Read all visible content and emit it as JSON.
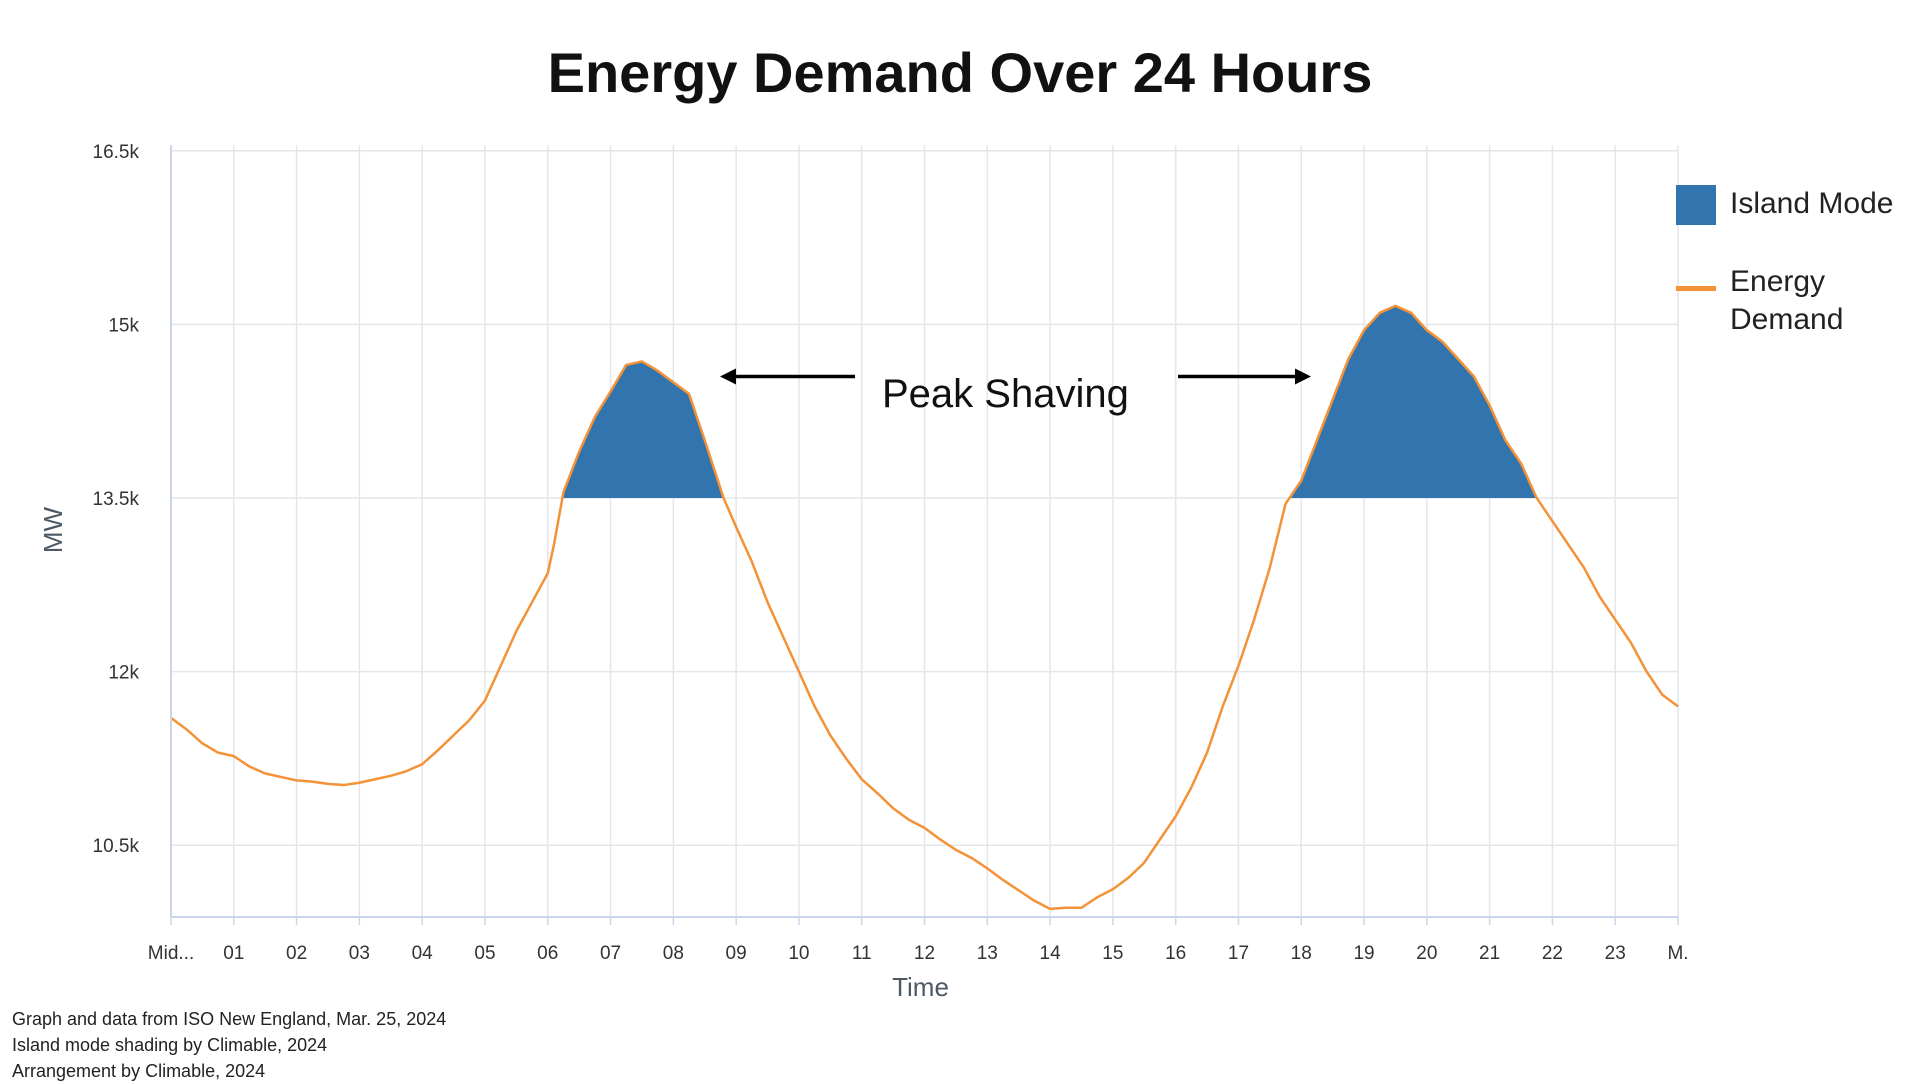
{
  "chart_data": {
    "type": "area",
    "title": "Energy Demand Over 24 Hours",
    "xlabel": "Time",
    "ylabel": "MW",
    "x_tick_labels": [
      "Mid...",
      "01",
      "02",
      "03",
      "04",
      "05",
      "06",
      "07",
      "08",
      "09",
      "10",
      "11",
      "12",
      "13",
      "14",
      "15",
      "16",
      "17",
      "18",
      "19",
      "20",
      "21",
      "22",
      "23",
      "M."
    ],
    "y_tick_labels": [
      "10.5k",
      "12k",
      "13.5k",
      "15k",
      "16.5k"
    ],
    "y_ticks": [
      10500,
      12000,
      13500,
      15000,
      16500
    ],
    "xlim": [
      0,
      24
    ],
    "ylim": [
      9880,
      16550
    ],
    "grid": true,
    "legend_position": "right",
    "series": [
      {
        "name": "Energy Demand",
        "type": "line",
        "color": "#f39237",
        "x": [
          0,
          0.25,
          0.5,
          0.75,
          1,
          1.25,
          1.5,
          1.75,
          2,
          2.25,
          2.5,
          2.75,
          3,
          3.25,
          3.5,
          3.75,
          4,
          4.25,
          4.5,
          4.75,
          5,
          5.25,
          5.5,
          5.75,
          6,
          6.1,
          6.25,
          6.5,
          6.75,
          7,
          7.25,
          7.5,
          7.75,
          8,
          8.25,
          8.5,
          8.8,
          9,
          9.25,
          9.5,
          9.75,
          10,
          10.25,
          10.5,
          10.75,
          11,
          11.25,
          11.5,
          11.75,
          12,
          12.25,
          12.5,
          12.75,
          13,
          13.25,
          13.5,
          13.75,
          14,
          14.25,
          14.5,
          14.75,
          15,
          15.25,
          15.5,
          15.75,
          16,
          16.25,
          16.5,
          16.75,
          17,
          17.25,
          17.5,
          17.75,
          18,
          18.25,
          18.5,
          18.75,
          19,
          19.25,
          19.5,
          19.75,
          20,
          20.25,
          20.5,
          20.75,
          21,
          21.25,
          21.5,
          21.75,
          22,
          22.25,
          22.5,
          22.75,
          23,
          23.25,
          23.5,
          23.75,
          24
        ],
        "y": [
          11600,
          11500,
          11380,
          11300,
          11270,
          11180,
          11120,
          11090,
          11060,
          11050,
          11030,
          11020,
          11040,
          11070,
          11100,
          11140,
          11200,
          11320,
          11450,
          11580,
          11750,
          12050,
          12350,
          12600,
          12850,
          13100,
          13550,
          13900,
          14200,
          14420,
          14650,
          14680,
          14600,
          14500,
          14400,
          14000,
          13500,
          13250,
          12950,
          12600,
          12300,
          12000,
          11700,
          11450,
          11250,
          11070,
          10950,
          10820,
          10720,
          10650,
          10550,
          10460,
          10390,
          10300,
          10200,
          10110,
          10020,
          9950,
          9960,
          9960,
          10050,
          10120,
          10220,
          10350,
          10550,
          10750,
          11000,
          11300,
          11700,
          12050,
          12450,
          12900,
          13450,
          13650,
          14000,
          14350,
          14700,
          14950,
          15100,
          15160,
          15100,
          14950,
          14850,
          14700,
          14550,
          14300,
          14000,
          13800,
          13500,
          13300,
          13100,
          12900,
          12650,
          12450,
          12250,
          12000,
          11800,
          11700
        ]
      },
      {
        "name": "Island Mode",
        "type": "area",
        "color": "#3274ad",
        "threshold": 13500
      }
    ],
    "annotations": [
      {
        "text": "Peak Shaving",
        "arrows": "left-and-right"
      }
    ]
  },
  "footer": {
    "line1": "Graph and data from ISO New England, Mar. 25, 2024",
    "line2": "Island mode shading by Climable, 2024",
    "line3": "Arrangement by Climable, 2024"
  }
}
